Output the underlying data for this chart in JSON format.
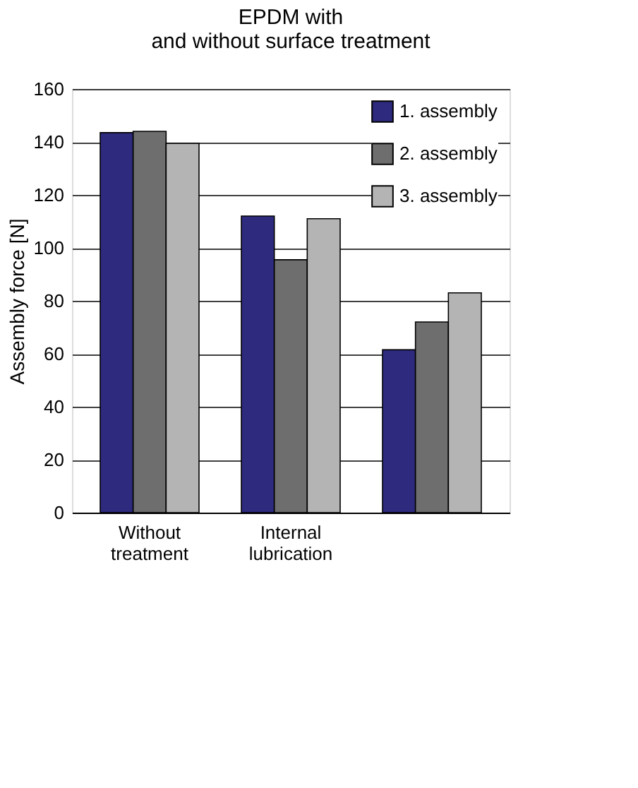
{
  "chart_data": {
    "type": "bar",
    "title": [
      "EPDM with",
      "and without surface treatment"
    ],
    "ylabel": "Assembly force [N]",
    "categories": [
      "Without treatment",
      "Internal lubrication",
      null
    ],
    "series": [
      {
        "name": "1. assembly",
        "color": "#2e2a7e",
        "values": [
          143.5,
          112,
          61.5
        ]
      },
      {
        "name": "2. assembly",
        "color": "#6e6e6e",
        "values": [
          144,
          95.5,
          72
        ]
      },
      {
        "name": "3. assembly",
        "color": "#b4b4b4",
        "values": [
          139.5,
          111,
          83
        ]
      }
    ],
    "ylim": [
      0,
      160
    ],
    "yticks": [
      0,
      20,
      40,
      60,
      80,
      100,
      120,
      140,
      160
    ],
    "grid": "y",
    "legend": "top right"
  }
}
